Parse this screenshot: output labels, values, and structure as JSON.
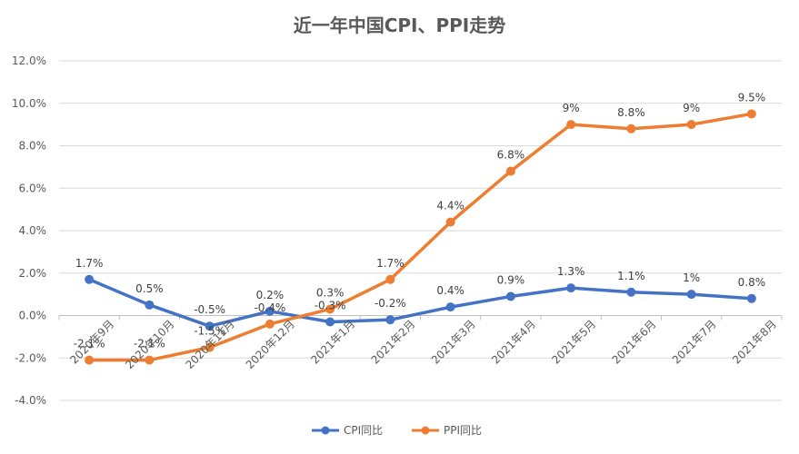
{
  "chart_data": {
    "type": "line",
    "title": "近一年中国CPI、PPI走势",
    "categories": [
      "2020年9月",
      "2020年10月",
      "2020年11月",
      "2020年12月",
      "2021年1月",
      "2021年2月",
      "2021年3月",
      "2021年4月",
      "2021年5月",
      "2021年6月",
      "2021年7月",
      "2021年8月"
    ],
    "series": [
      {
        "name": "CPI同比",
        "color": "#4472C4",
        "values": [
          1.7,
          0.5,
          -0.5,
          0.2,
          -0.3,
          -0.2,
          0.4,
          0.9,
          1.3,
          1.1,
          1.0,
          0.8
        ],
        "labels": [
          "1.7%",
          "0.5%",
          "-0.5%",
          "0.2%",
          "-0.3%",
          "-0.2%",
          "0.4%",
          "0.9%",
          "1.3%",
          "1.1%",
          "1%",
          "0.8%"
        ]
      },
      {
        "name": "PPI同比",
        "color": "#ED7D31",
        "values": [
          -2.1,
          -2.1,
          -1.5,
          -0.4,
          0.3,
          1.7,
          4.4,
          6.8,
          9.0,
          8.8,
          9.0,
          9.5
        ],
        "labels": [
          "-2.1%",
          "-2.1%",
          "-1.5%",
          "-0.4%",
          "0.3%",
          "1.7%",
          "4.4%",
          "6.8%",
          "9%",
          "8.8%",
          "9%",
          "9.5%"
        ]
      }
    ],
    "ylim": [
      -4.0,
      12.0
    ],
    "yticks": [
      -4.0,
      -2.0,
      0.0,
      2.0,
      4.0,
      6.0,
      8.0,
      10.0,
      12.0
    ],
    "ytick_labels": [
      "-4.0%",
      "-2.0%",
      "0.0%",
      "2.0%",
      "4.0%",
      "6.0%",
      "8.0%",
      "10.0%",
      "12.0%"
    ],
    "grid": true,
    "legend": "bottom"
  }
}
